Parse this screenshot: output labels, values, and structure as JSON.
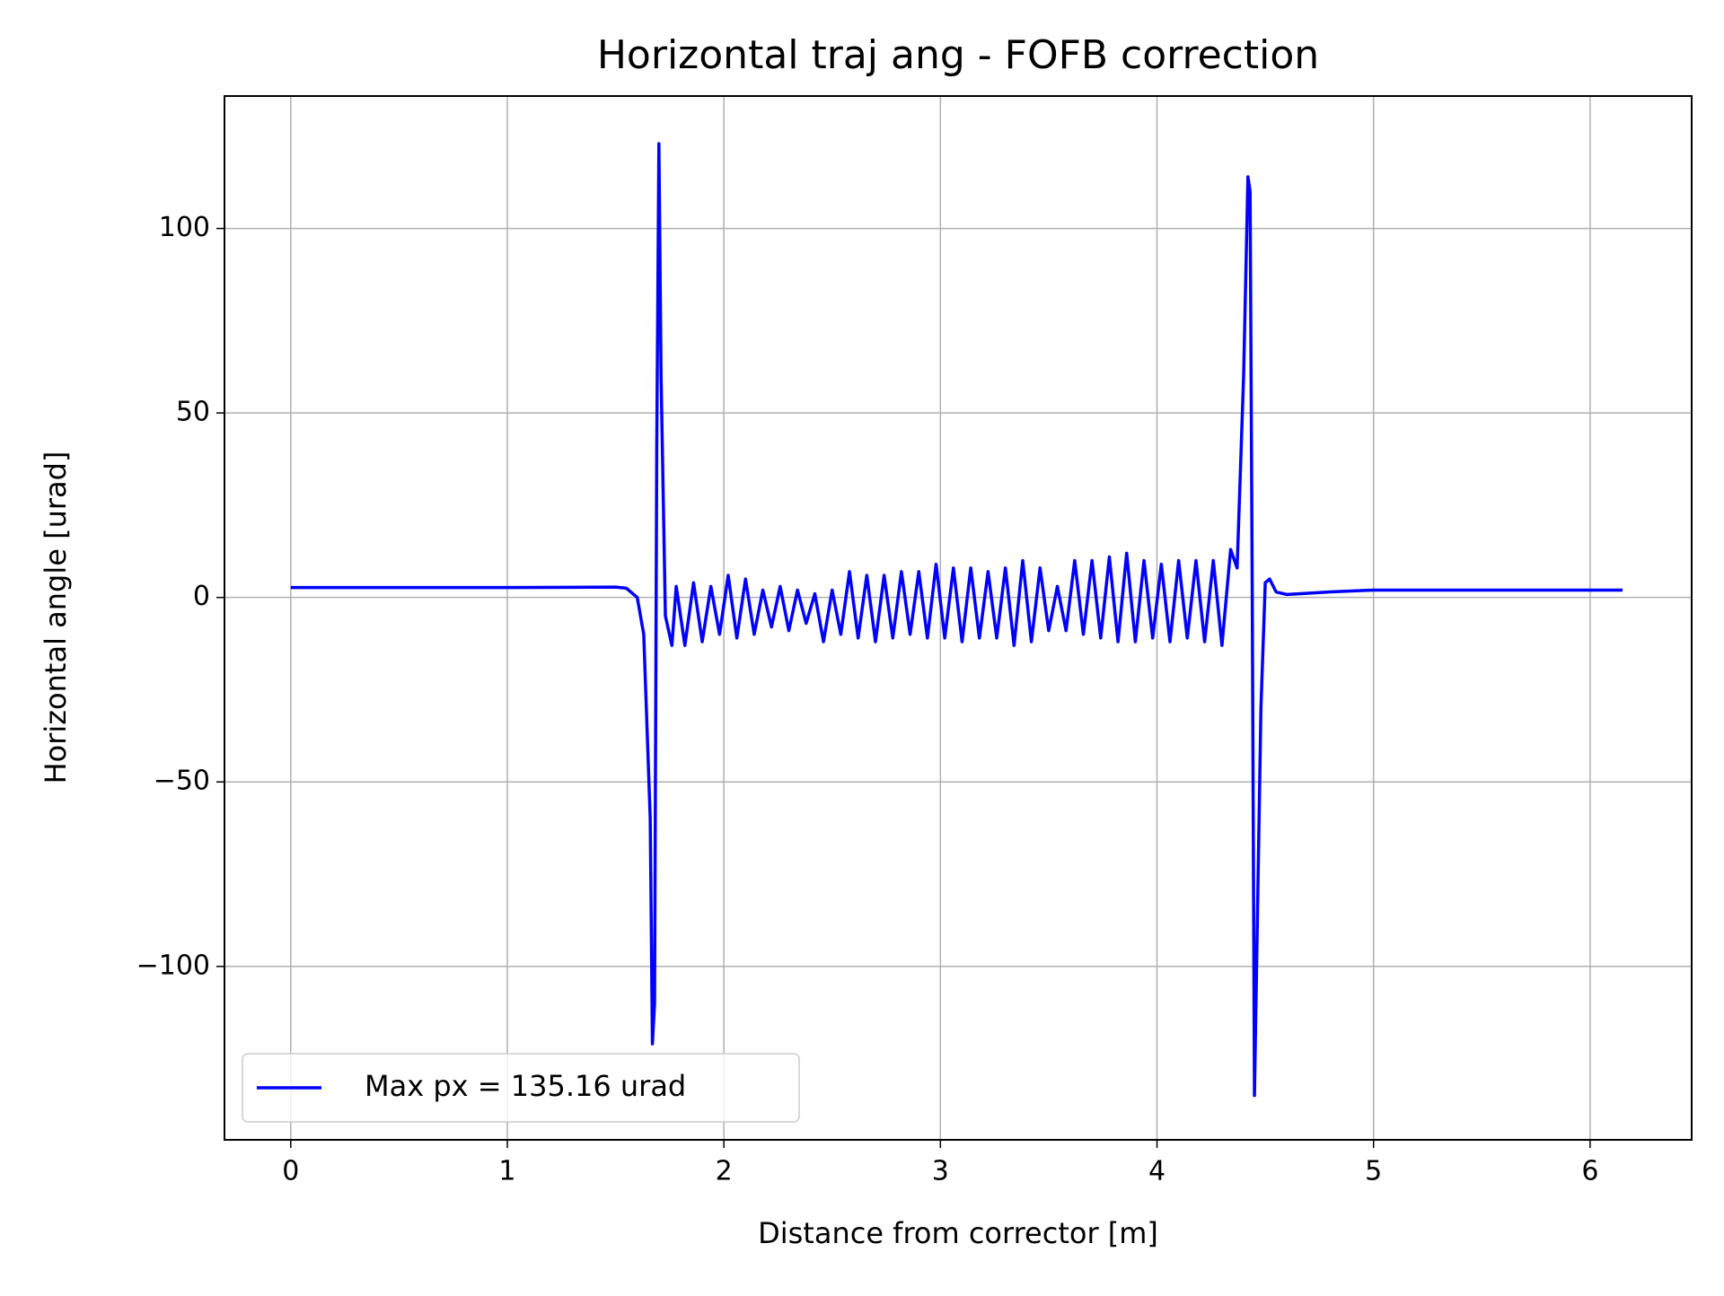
{
  "chart_data": {
    "type": "line",
    "title": "Horizontal traj ang - FOFB correction",
    "xlabel": "Distance from corrector [m]",
    "ylabel": "Horizontal angle [urad]",
    "x": [
      0,
      0.5,
      1.0,
      1.5,
      1.55,
      1.6,
      1.63,
      1.66,
      1.67,
      1.68,
      1.69,
      1.7,
      1.71,
      1.73,
      1.76,
      1.78,
      1.82,
      1.86,
      1.9,
      1.94,
      1.98,
      2.02,
      2.06,
      2.1,
      2.14,
      2.18,
      2.22,
      2.26,
      2.3,
      2.34,
      2.38,
      2.42,
      2.46,
      2.5,
      2.54,
      2.58,
      2.62,
      2.66,
      2.7,
      2.74,
      2.78,
      2.82,
      2.86,
      2.9,
      2.94,
      2.98,
      3.02,
      3.06,
      3.1,
      3.14,
      3.18,
      3.22,
      3.26,
      3.3,
      3.34,
      3.38,
      3.42,
      3.46,
      3.5,
      3.54,
      3.58,
      3.62,
      3.66,
      3.7,
      3.74,
      3.78,
      3.82,
      3.86,
      3.9,
      3.94,
      3.98,
      4.02,
      4.06,
      4.1,
      4.14,
      4.18,
      4.22,
      4.26,
      4.3,
      4.34,
      4.37,
      4.4,
      4.42,
      4.43,
      4.44,
      4.45,
      4.46,
      4.48,
      4.5,
      4.52,
      4.55,
      4.6,
      4.8,
      5.0,
      6.15
    ],
    "series": [
      {
        "name": "Max px = 135.16 urad",
        "color": "#0000ff",
        "values": [
          2.7,
          2.7,
          2.7,
          2.8,
          2.5,
          0,
          -10,
          -60,
          -121,
          -110,
          40,
          123,
          60,
          -5,
          -13,
          3,
          -13,
          4,
          -12,
          3,
          -10,
          6,
          -11,
          5,
          -10,
          2,
          -8,
          3,
          -9,
          2,
          -7,
          1,
          -12,
          2,
          -10,
          7,
          -11,
          6,
          -12,
          6,
          -11,
          7,
          -10,
          7,
          -11,
          9,
          -11,
          8,
          -12,
          8,
          -11,
          7,
          -11,
          8,
          -13,
          10,
          -12,
          8,
          -9,
          3,
          -9,
          10,
          -10,
          10,
          -11,
          11,
          -12,
          12,
          -12,
          10,
          -11,
          9,
          -12,
          10,
          -11,
          10,
          -12,
          10,
          -13,
          13,
          8,
          60,
          114,
          110,
          0,
          -135,
          -100,
          -30,
          4,
          5,
          1.5,
          0.8,
          1.5,
          2,
          2
        ]
      }
    ],
    "xlim": [
      -0.306,
      6.469
    ],
    "ylim": [
      -147,
      135.9
    ],
    "xticks": [
      0,
      1,
      2,
      3,
      4,
      5,
      6
    ],
    "yticks": [
      {
        "value": -100,
        "label": "−100"
      },
      {
        "value": -50,
        "label": "−50"
      },
      0,
      50,
      100
    ],
    "grid": true,
    "legend": "lower-left"
  }
}
